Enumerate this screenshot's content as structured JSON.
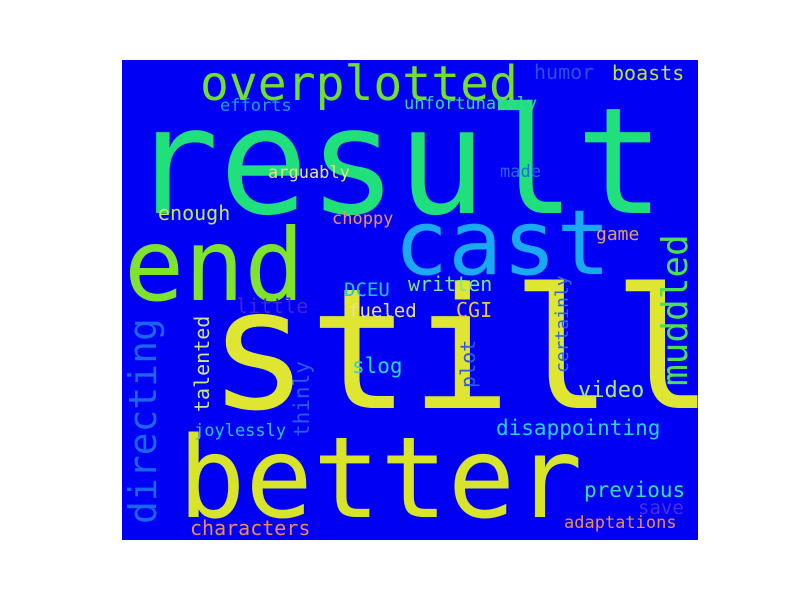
{
  "background_color": "#0000f5",
  "words": {
    "result": {
      "text": "result",
      "color": "#1fe07a"
    },
    "still": {
      "text": "still",
      "color": "#dfe632"
    },
    "better": {
      "text": "better",
      "color": "#d8e42a"
    },
    "end": {
      "text": "end",
      "color": "#7ee32e"
    },
    "cast": {
      "text": "cast",
      "color": "#1aa9f2"
    },
    "overplotted": {
      "text": "overplotted",
      "color": "#6fe02e"
    },
    "muddled": {
      "text": "muddled",
      "color": "#4ee052"
    },
    "directing": {
      "text": "directing",
      "color": "#1c66e8"
    },
    "humor": {
      "text": "humor",
      "color": "#2a50e0"
    },
    "boasts": {
      "text": "boasts",
      "color": "#bfe43c"
    },
    "efforts": {
      "text": "efforts",
      "color": "#1ea0e6"
    },
    "unfortunately": {
      "text": "unfortunately",
      "color": "#39d6a4"
    },
    "arguably": {
      "text": "arguably",
      "color": "#e8e680"
    },
    "made": {
      "text": "made",
      "color": "#2a66e8"
    },
    "enough": {
      "text": "enough",
      "color": "#c4e85a"
    },
    "choppy": {
      "text": "choppy",
      "color": "#f0925e"
    },
    "game": {
      "text": "game",
      "color": "#e8a062"
    },
    "little": {
      "text": "little",
      "color": "#4424d6"
    },
    "DCEU": {
      "text": "DCEU",
      "color": "#1ec8d8"
    },
    "written": {
      "text": "written",
      "color": "#7ae890"
    },
    "fueled": {
      "text": "fueled",
      "color": "#e8e484"
    },
    "CGI": {
      "text": "CGI",
      "color": "#f2c43e"
    },
    "certainly": {
      "text": "certainly",
      "color": "#2e6ae0"
    },
    "talented": {
      "text": "talented",
      "color": "#d0e680"
    },
    "slog": {
      "text": "slog",
      "color": "#28d6d6"
    },
    "plot": {
      "text": "plot",
      "color": "#2a5ae6"
    },
    "thinly": {
      "text": "thinly",
      "color": "#2a5ae6"
    },
    "video": {
      "text": "video",
      "color": "#a6e882"
    },
    "joylessly": {
      "text": "joylessly",
      "color": "#26c4e0"
    },
    "disappointing": {
      "text": "disappointing",
      "color": "#26d4e8"
    },
    "previous": {
      "text": "previous",
      "color": "#32e0a8"
    },
    "save": {
      "text": "save",
      "color": "#4a2ee0"
    },
    "characters": {
      "text": "characters",
      "color": "#f08a5a"
    },
    "adaptations": {
      "text": "adaptations",
      "color": "#f08a5a"
    }
  }
}
